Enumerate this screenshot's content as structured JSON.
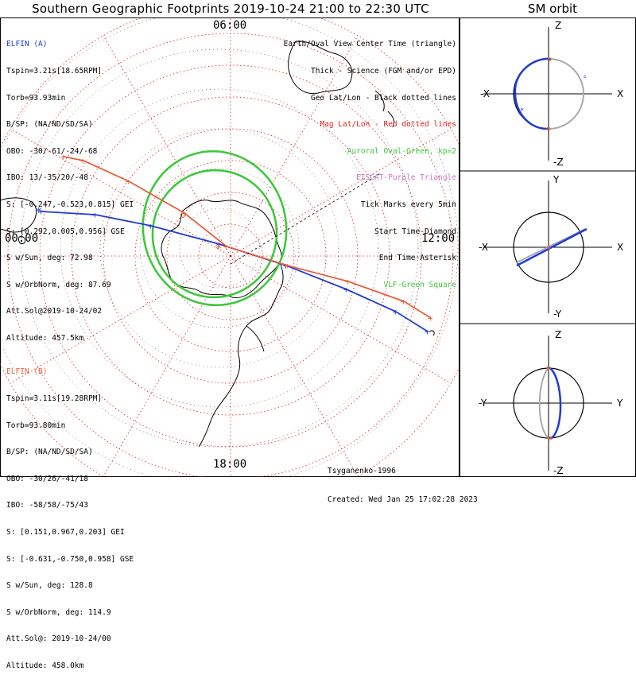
{
  "title": "Southern Geographic Footprints 2019-10-24 21:00 to 22:30 UTC",
  "sm_orbit_title": "SM orbit",
  "clock_labels": {
    "top": "06:00",
    "left": "00:00",
    "right": "12:00",
    "bottom": "18:00"
  },
  "elfin_a": {
    "name": "ELFIN (A)",
    "color": "#1f3bd6",
    "lines": [
      "Tspin=3.21s[18.65RPM]",
      "Torb=93.93min",
      "B/SP: (NA/ND/SD/SA)",
      "OBO: -30/-61/-24/-68",
      "IBO: 13/-35/20/-48",
      "S: [-0.247,-0.523,0.815] GEI",
      "S: [0.292,0.005,0.956] GSE",
      "S w/Sun, deg: 72.98",
      "S w/OrbNorm, deg: 87.69",
      "Att.Sol@2019-10-24/02",
      "Altitude: 457.5km"
    ]
  },
  "elfin_b": {
    "name": "ELFIN (B)",
    "color": "#e8603c",
    "lines": [
      "Tspin=3.11s[19.28RPM]",
      "Torb=93.80min",
      "B/SP: (NA/ND/SD/SA)",
      "OBO: -30/26/-41/18",
      "IBO: -58/58/-75/43",
      "S: [0.151,0.967,0.203] GEI",
      "S: [-0.631,-0.750,0.958] GSE",
      "S w/Sun, deg: 128.8",
      "S w/OrbNorm, deg: 114.9",
      "Att.Sol@: 2019-10-24/00",
      "Altitude: 458.0km"
    ]
  },
  "legend": [
    {
      "text": "Earth/Oval View Center Time (triangle)",
      "color": "#000000"
    },
    {
      "text": "Thick - Science (FGM and/or EPD)",
      "color": "#000000"
    },
    {
      "text": "Geo Lat/Lon - Black dotted lines",
      "color": "#000000"
    },
    {
      "text": "Mag Lat/Lon - Red dotted lines",
      "color": "#e0201c"
    },
    {
      "text": "Auroral Oval-Green, kp=2",
      "color": "#3ac83a"
    },
    {
      "text": "EISCAT-Purple Triangle",
      "color": "#c878c8"
    },
    {
      "text": "Tick Marks every 5min",
      "color": "#000000"
    },
    {
      "text": "Start Time-Diamond",
      "color": "#000000"
    },
    {
      "text": "End Time-Asterisk",
      "color": "#000000"
    },
    {
      "text": "VLF-Green Square",
      "color": "#3ac83a"
    }
  ],
  "footer": {
    "author": "Tsyganenko-1996",
    "created": "Created: Wed Jan 25 17:02:28 2023"
  },
  "orbit_panels": [
    {
      "top": "Z",
      "bottom": "-Z",
      "left": "-X",
      "right": "X"
    },
    {
      "top": "Y",
      "bottom": "-Y",
      "left": "-X",
      "right": "X"
    },
    {
      "top": "Z",
      "bottom": "-Z",
      "left": "-Y",
      "right": "Y"
    }
  ],
  "colors": {
    "elfin_a": "#1f3bd6",
    "elfin_b": "#e8603c",
    "grid": "#e0201c",
    "oval": "#3ac83a",
    "land": "#000000"
  }
}
